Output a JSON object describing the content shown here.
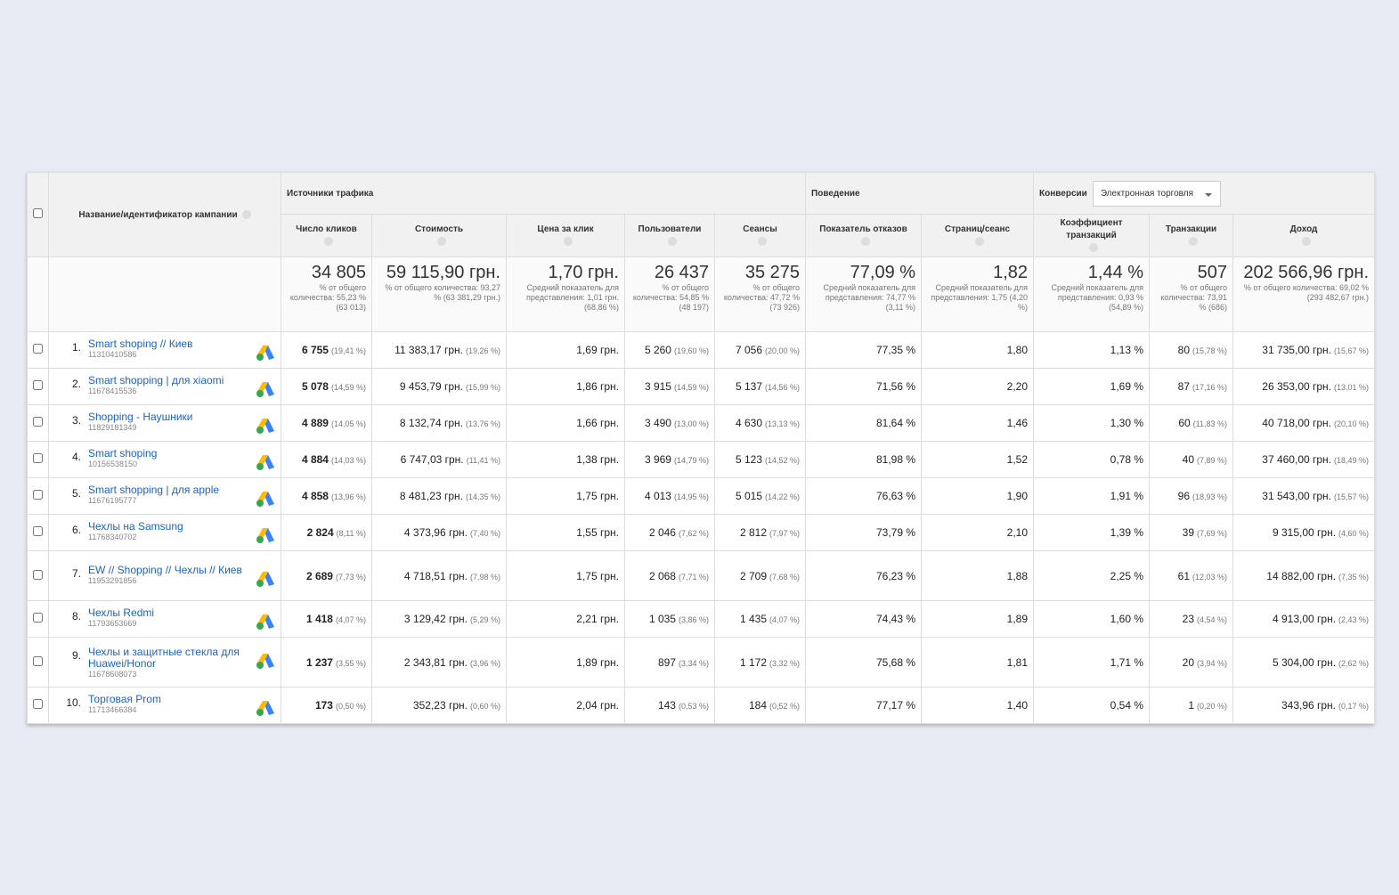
{
  "header": {
    "name_column": "Название/идентификатор кампании",
    "groups": [
      "Источники трафика",
      "Поведение",
      "Конверсии"
    ],
    "conversion_select": "Электронная торговля"
  },
  "columns": [
    "Число кликов",
    "Стоимость",
    "Цена за клик",
    "Пользователи",
    "Сеансы",
    "Показатель отказов",
    "Страниц/сеанс",
    "Коэффициент транзакций",
    "Транзакции",
    "Доход"
  ],
  "totals": [
    {
      "value": "34 805",
      "note": "% от общего количества: 55,23 % (63 013)"
    },
    {
      "value": "59 115,90 грн.",
      "note": "% от общего количества: 93,27 % (63 381,29 грн.)"
    },
    {
      "value": "1,70 грн.",
      "note": "Средний показатель для представления: 1,01 грн. (68,86 %)"
    },
    {
      "value": "26 437",
      "note": "% от общего количества: 54,85 % (48 197)"
    },
    {
      "value": "35 275",
      "note": "% от общего количества: 47,72 % (73 926)"
    },
    {
      "value": "77,09 %",
      "note": "Средний показатель для представления: 74,77 % (3,11 %)"
    },
    {
      "value": "1,82",
      "note": "Средний показатель для представления: 1,75 (4,20 %)"
    },
    {
      "value": "1,44 %",
      "note": "Средний показатель для представления: 0,93 % (54,89 %)"
    },
    {
      "value": "507",
      "note": "% от общего количества: 73,91 % (686)"
    },
    {
      "value": "202 566,96 грн.",
      "note": "% от общего количества: 69,02 % (293 482,67 грн.)"
    }
  ],
  "rows": [
    {
      "index": "1.",
      "name": "Smart shoping // Киев",
      "id": "11310410586",
      "cells": [
        {
          "value": "6 755",
          "share": "(19,41 %)"
        },
        {
          "value": "11 383,17 грн.",
          "share": "(19,26 %)"
        },
        {
          "value": "1,69 грн."
        },
        {
          "value": "5 260",
          "share": "(19,60 %)"
        },
        {
          "value": "7 056",
          "share": "(20,00 %)"
        },
        {
          "value": "77,35 %"
        },
        {
          "value": "1,80"
        },
        {
          "value": "1,13 %"
        },
        {
          "value": "80",
          "share": "(15,78 %)"
        },
        {
          "value": "31 735,00 грн.",
          "share": "(15,67 %)"
        }
      ]
    },
    {
      "index": "2.",
      "name": "Smart shopping | для xiaomi",
      "id": "11678415536",
      "cells": [
        {
          "value": "5 078",
          "share": "(14,59 %)"
        },
        {
          "value": "9 453,79 грн.",
          "share": "(15,99 %)"
        },
        {
          "value": "1,86 грн."
        },
        {
          "value": "3 915",
          "share": "(14,59 %)"
        },
        {
          "value": "5 137",
          "share": "(14,56 %)"
        },
        {
          "value": "71,56 %"
        },
        {
          "value": "2,20"
        },
        {
          "value": "1,69 %"
        },
        {
          "value": "87",
          "share": "(17,16 %)"
        },
        {
          "value": "26 353,00 грн.",
          "share": "(13,01 %)"
        }
      ]
    },
    {
      "index": "3.",
      "name": "Shopping - Наушники",
      "id": "11829181349",
      "cells": [
        {
          "value": "4 889",
          "share": "(14,05 %)"
        },
        {
          "value": "8 132,74 грн.",
          "share": "(13,76 %)"
        },
        {
          "value": "1,66 грн."
        },
        {
          "value": "3 490",
          "share": "(13,00 %)"
        },
        {
          "value": "4 630",
          "share": "(13,13 %)"
        },
        {
          "value": "81,64 %"
        },
        {
          "value": "1,46"
        },
        {
          "value": "1,30 %"
        },
        {
          "value": "60",
          "share": "(11,83 %)"
        },
        {
          "value": "40 718,00 грн.",
          "share": "(20,10 %)"
        }
      ]
    },
    {
      "index": "4.",
      "name": "Smart shoping",
      "id": "10156538150",
      "cells": [
        {
          "value": "4 884",
          "share": "(14,03 %)"
        },
        {
          "value": "6 747,03 грн.",
          "share": "(11,41 %)"
        },
        {
          "value": "1,38 грн."
        },
        {
          "value": "3 969",
          "share": "(14,79 %)"
        },
        {
          "value": "5 123",
          "share": "(14,52 %)"
        },
        {
          "value": "81,98 %"
        },
        {
          "value": "1,52"
        },
        {
          "value": "0,78 %"
        },
        {
          "value": "40",
          "share": "(7,89 %)"
        },
        {
          "value": "37 460,00 грн.",
          "share": "(18,49 %)"
        }
      ]
    },
    {
      "index": "5.",
      "name": "Smart shopping | для apple",
      "id": "11676195777",
      "cells": [
        {
          "value": "4 858",
          "share": "(13,96 %)"
        },
        {
          "value": "8 481,23 грн.",
          "share": "(14,35 %)"
        },
        {
          "value": "1,75 грн."
        },
        {
          "value": "4 013",
          "share": "(14,95 %)"
        },
        {
          "value": "5 015",
          "share": "(14,22 %)"
        },
        {
          "value": "76,63 %"
        },
        {
          "value": "1,90"
        },
        {
          "value": "1,91 %"
        },
        {
          "value": "96",
          "share": "(18,93 %)"
        },
        {
          "value": "31 543,00 грн.",
          "share": "(15,57 %)"
        }
      ]
    },
    {
      "index": "6.",
      "name": "Чехлы на Samsung",
      "id": "11768340702",
      "cells": [
        {
          "value": "2 824",
          "share": "(8,11 %)"
        },
        {
          "value": "4 373,96 грн.",
          "share": "(7,40 %)"
        },
        {
          "value": "1,55 грн."
        },
        {
          "value": "2 046",
          "share": "(7,62 %)"
        },
        {
          "value": "2 812",
          "share": "(7,97 %)"
        },
        {
          "value": "73,79 %"
        },
        {
          "value": "2,10"
        },
        {
          "value": "1,39 %"
        },
        {
          "value": "39",
          "share": "(7,69 %)"
        },
        {
          "value": "9 315,00 грн.",
          "share": "(4,60 %)"
        }
      ]
    },
    {
      "index": "7.",
      "name": "EW // Shopping // Чехлы // Киев",
      "id": "11953291856",
      "cells": [
        {
          "value": "2 689",
          "share": "(7,73 %)"
        },
        {
          "value": "4 718,51 грн.",
          "share": "(7,98 %)"
        },
        {
          "value": "1,75 грн."
        },
        {
          "value": "2 068",
          "share": "(7,71 %)"
        },
        {
          "value": "2 709",
          "share": "(7,68 %)"
        },
        {
          "value": "76,23 %"
        },
        {
          "value": "1,88"
        },
        {
          "value": "2,25 %"
        },
        {
          "value": "61",
          "share": "(12,03 %)"
        },
        {
          "value": "14 882,00 грн.",
          "share": "(7,35 %)"
        }
      ]
    },
    {
      "index": "8.",
      "name": "Чехлы Redmi",
      "id": "11793653669",
      "cells": [
        {
          "value": "1 418",
          "share": "(4,07 %)"
        },
        {
          "value": "3 129,42 грн.",
          "share": "(5,29 %)"
        },
        {
          "value": "2,21 грн."
        },
        {
          "value": "1 035",
          "share": "(3,86 %)"
        },
        {
          "value": "1 435",
          "share": "(4,07 %)"
        },
        {
          "value": "74,43 %"
        },
        {
          "value": "1,89"
        },
        {
          "value": "1,60 %"
        },
        {
          "value": "23",
          "share": "(4,54 %)"
        },
        {
          "value": "4 913,00 грн.",
          "share": "(2,43 %)"
        }
      ]
    },
    {
      "index": "9.",
      "name": "Чехлы и защитные стекла для Huawei/Honor",
      "id": "11678608073",
      "cells": [
        {
          "value": "1 237",
          "share": "(3,55 %)"
        },
        {
          "value": "2 343,81 грн.",
          "share": "(3,96 %)"
        },
        {
          "value": "1,89 грн."
        },
        {
          "value": "897",
          "share": "(3,34 %)"
        },
        {
          "value": "1 172",
          "share": "(3,32 %)"
        },
        {
          "value": "75,68 %"
        },
        {
          "value": "1,81"
        },
        {
          "value": "1,71 %"
        },
        {
          "value": "20",
          "share": "(3,94 %)"
        },
        {
          "value": "5 304,00 грн.",
          "share": "(2,62 %)"
        }
      ]
    },
    {
      "index": "10.",
      "name": "Торговая Prom",
      "id": "11713466384",
      "cells": [
        {
          "value": "173",
          "share": "(0,50 %)"
        },
        {
          "value": "352,23 грн.",
          "share": "(0,60 %)"
        },
        {
          "value": "2,04 грн."
        },
        {
          "value": "143",
          "share": "(0,53 %)"
        },
        {
          "value": "184",
          "share": "(0,52 %)"
        },
        {
          "value": "77,17 %"
        },
        {
          "value": "1,40"
        },
        {
          "value": "0,54 %"
        },
        {
          "value": "1",
          "share": "(0,20 %)"
        },
        {
          "value": "343,96 грн.",
          "share": "(0,17 %)"
        }
      ]
    }
  ]
}
